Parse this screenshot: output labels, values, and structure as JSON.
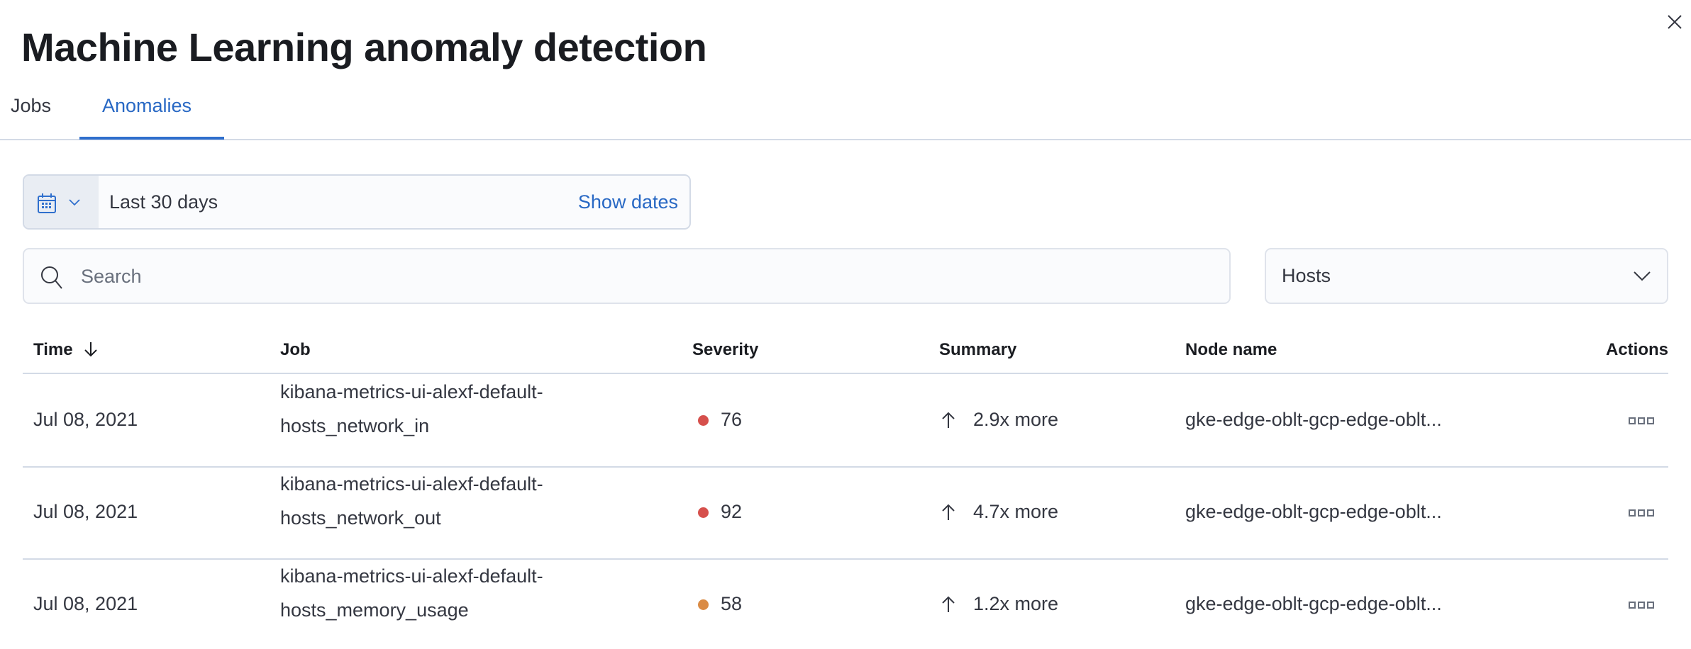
{
  "header": {
    "title": "Machine Learning anomaly detection",
    "close_icon": "close-icon"
  },
  "tabs": [
    {
      "label": "Jobs",
      "selected": false
    },
    {
      "label": "Anomalies",
      "selected": true
    }
  ],
  "date_picker": {
    "icon": "calendar-icon",
    "range_label": "Last 30 days",
    "show_dates_label": "Show dates"
  },
  "search": {
    "placeholder": "Search",
    "value": ""
  },
  "type_select": {
    "selected": "Hosts"
  },
  "table": {
    "columns": [
      "Time",
      "Job",
      "Severity",
      "Summary",
      "Node name",
      "Actions"
    ],
    "sort": {
      "column": "Time",
      "direction": "descending"
    },
    "rows": [
      {
        "time": "Jul 08, 2021",
        "job_line1": "kibana-metrics-ui-alexf-default-",
        "job_line2": "hosts_network_in",
        "severity": "76",
        "severity_color": "#d6504c",
        "summary": "2.9x more",
        "node": "gke-edge-oblt-gcp-edge-oblt..."
      },
      {
        "time": "Jul 08, 2021",
        "job_line1": "kibana-metrics-ui-alexf-default-",
        "job_line2": "hosts_network_out",
        "severity": "92",
        "severity_color": "#d6504c",
        "summary": "4.7x more",
        "node": "gke-edge-oblt-gcp-edge-oblt..."
      },
      {
        "time": "Jul 08, 2021",
        "job_line1": "kibana-metrics-ui-alexf-default-",
        "job_line2": "hosts_memory_usage",
        "severity": "58",
        "severity_color": "#da8b45",
        "summary": "1.2x more",
        "node": "gke-edge-oblt-gcp-edge-oblt..."
      }
    ]
  },
  "colors": {
    "accent": "#2868c4",
    "border": "#d3dae6"
  }
}
